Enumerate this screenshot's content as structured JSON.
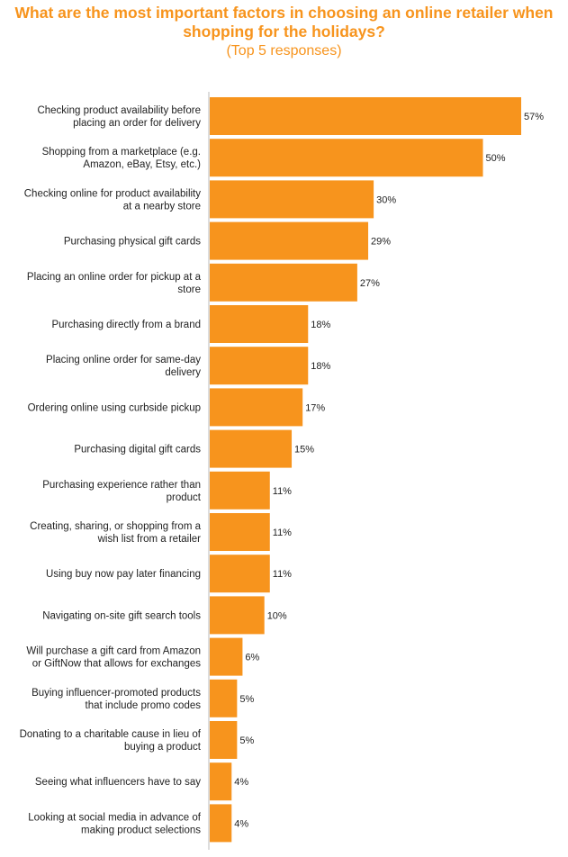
{
  "header": {
    "title": "What are the most important factors in choosing an online retailer when shopping for the holidays?",
    "subtitle": "(Top 5 responses)"
  },
  "colors": {
    "bar": "#f7941d",
    "title": "#f7941d",
    "axis": "#bbbbbb"
  },
  "chart_data": {
    "type": "bar",
    "orientation": "horizontal",
    "title": "What are the most important factors in choosing an online retailer when shopping for the holidays?",
    "subtitle": "(Top 5 responses)",
    "categories": [
      [
        "Checking product availability before",
        "placing an order for delivery"
      ],
      [
        "Shopping from a marketplace (e.g.",
        "Amazon, eBay, Etsy, etc.)"
      ],
      [
        "Checking online for product availability",
        "at a nearby store"
      ],
      [
        "Purchasing physical gift cards"
      ],
      [
        "Placing an online order for pickup at a",
        "store"
      ],
      [
        "Purchasing directly from a brand"
      ],
      [
        "Placing online order for same-day",
        "delivery"
      ],
      [
        "Ordering online using curbside pickup"
      ],
      [
        "Purchasing digital gift cards"
      ],
      [
        "Purchasing experience rather than",
        "product"
      ],
      [
        "Creating, sharing, or shopping from a",
        "wish list from a retailer"
      ],
      [
        "Using buy now pay later financing"
      ],
      [
        "Navigating on-site gift search tools"
      ],
      [
        "Will purchase a gift card from Amazon",
        "or GiftNow that allows for exchanges"
      ],
      [
        "Buying influencer-promoted products",
        "that include promo codes"
      ],
      [
        "Donating to a charitable cause in lieu of",
        "buying a product"
      ],
      [
        "Seeing what influencers have to say"
      ],
      [
        "Looking at social media in advance of",
        "making product selections"
      ]
    ],
    "values": [
      57,
      50,
      30,
      29,
      27,
      18,
      18,
      17,
      15,
      11,
      11,
      11,
      10,
      6,
      5,
      5,
      4,
      4
    ],
    "value_labels": [
      "57%",
      "50%",
      "30%",
      "29%",
      "27%",
      "18%",
      "18%",
      "17%",
      "15%",
      "11%",
      "11%",
      "11%",
      "10%",
      "6%",
      "5%",
      "5%",
      "4%",
      "4%"
    ],
    "unit": "%",
    "xlim": [
      0,
      57
    ],
    "grid": false,
    "legend": "none"
  }
}
